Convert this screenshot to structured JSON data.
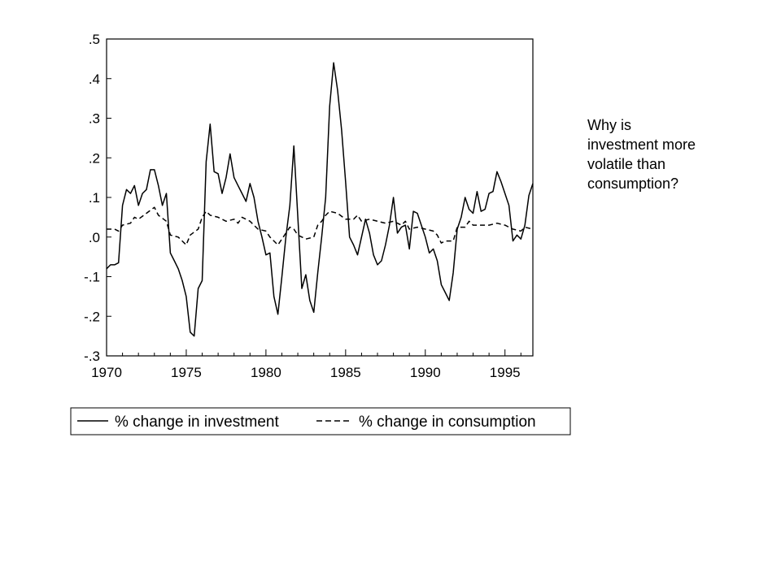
{
  "chart_data": {
    "type": "line",
    "title": "",
    "xlabel": "",
    "ylabel": "",
    "xlim": [
      1970,
      1996.75
    ],
    "ylim": [
      -0.3,
      0.5
    ],
    "x_ticks": [
      1970,
      1975,
      1980,
      1985,
      1990,
      1995
    ],
    "x_tick_labels": [
      "1970",
      "1975",
      "1980",
      "1985",
      "1990",
      "1995"
    ],
    "y_ticks": [
      -0.3,
      -0.2,
      -0.1,
      0.0,
      0.1,
      0.2,
      0.3,
      0.4,
      0.5
    ],
    "y_tick_labels": [
      "-.3",
      "-.2",
      "-.1",
      ".0",
      ".1",
      ".2",
      ".3",
      ".4",
      ".5"
    ],
    "grid": false,
    "legend_position": "bottom",
    "series": [
      {
        "name": "% change in investment",
        "style": "solid",
        "color": "#000000",
        "points": [
          [
            1970.0,
            -0.08
          ],
          [
            1970.25,
            -0.07
          ],
          [
            1970.5,
            -0.07
          ],
          [
            1970.75,
            -0.065
          ],
          [
            1971.0,
            0.08
          ],
          [
            1971.25,
            0.12
          ],
          [
            1971.5,
            0.11
          ],
          [
            1971.75,
            0.13
          ],
          [
            1972.0,
            0.08
          ],
          [
            1972.25,
            0.11
          ],
          [
            1972.5,
            0.12
          ],
          [
            1972.75,
            0.17
          ],
          [
            1973.0,
            0.17
          ],
          [
            1973.25,
            0.13
          ],
          [
            1973.5,
            0.08
          ],
          [
            1973.75,
            0.11
          ],
          [
            1974.0,
            -0.04
          ],
          [
            1974.25,
            -0.06
          ],
          [
            1974.5,
            -0.08
          ],
          [
            1974.75,
            -0.11
          ],
          [
            1975.0,
            -0.15
          ],
          [
            1975.25,
            -0.24
          ],
          [
            1975.5,
            -0.25
          ],
          [
            1975.75,
            -0.13
          ],
          [
            1976.0,
            -0.11
          ],
          [
            1976.25,
            0.19
          ],
          [
            1976.5,
            0.285
          ],
          [
            1976.75,
            0.165
          ],
          [
            1977.0,
            0.16
          ],
          [
            1977.25,
            0.11
          ],
          [
            1977.5,
            0.15
          ],
          [
            1977.75,
            0.21
          ],
          [
            1978.0,
            0.15
          ],
          [
            1978.25,
            0.13
          ],
          [
            1978.5,
            0.11
          ],
          [
            1978.75,
            0.09
          ],
          [
            1979.0,
            0.135
          ],
          [
            1979.25,
            0.1
          ],
          [
            1979.5,
            0.04
          ],
          [
            1979.75,
            0.0
          ],
          [
            1980.0,
            -0.045
          ],
          [
            1980.25,
            -0.04
          ],
          [
            1980.5,
            -0.15
          ],
          [
            1980.75,
            -0.195
          ],
          [
            1981.0,
            -0.1
          ],
          [
            1981.25,
            0.0
          ],
          [
            1981.5,
            0.08
          ],
          [
            1981.75,
            0.23
          ],
          [
            1982.0,
            0.05
          ],
          [
            1982.25,
            -0.13
          ],
          [
            1982.5,
            -0.095
          ],
          [
            1982.75,
            -0.16
          ],
          [
            1983.0,
            -0.19
          ],
          [
            1983.25,
            -0.09
          ],
          [
            1983.5,
            0.0
          ],
          [
            1983.75,
            0.1
          ],
          [
            1984.0,
            0.33
          ],
          [
            1984.25,
            0.44
          ],
          [
            1984.5,
            0.37
          ],
          [
            1984.75,
            0.27
          ],
          [
            1985.0,
            0.14
          ],
          [
            1985.25,
            0.0
          ],
          [
            1985.5,
            -0.02
          ],
          [
            1985.75,
            -0.045
          ],
          [
            1986.0,
            0.0
          ],
          [
            1986.25,
            0.045
          ],
          [
            1986.5,
            0.01
          ],
          [
            1986.75,
            -0.045
          ],
          [
            1987.0,
            -0.07
          ],
          [
            1987.25,
            -0.06
          ],
          [
            1987.5,
            -0.02
          ],
          [
            1987.75,
            0.03
          ],
          [
            1988.0,
            0.1
          ],
          [
            1988.25,
            0.01
          ],
          [
            1988.5,
            0.025
          ],
          [
            1988.75,
            0.03
          ],
          [
            1989.0,
            -0.03
          ],
          [
            1989.25,
            0.065
          ],
          [
            1989.5,
            0.06
          ],
          [
            1989.75,
            0.03
          ],
          [
            1990.0,
            0.0
          ],
          [
            1990.25,
            -0.04
          ],
          [
            1990.5,
            -0.03
          ],
          [
            1990.75,
            -0.06
          ],
          [
            1991.0,
            -0.12
          ],
          [
            1991.25,
            -0.14
          ],
          [
            1991.5,
            -0.16
          ],
          [
            1991.75,
            -0.09
          ],
          [
            1992.0,
            0.02
          ],
          [
            1992.25,
            0.05
          ],
          [
            1992.5,
            0.1
          ],
          [
            1992.75,
            0.07
          ],
          [
            1993.0,
            0.06
          ],
          [
            1993.25,
            0.115
          ],
          [
            1993.5,
            0.065
          ],
          [
            1993.75,
            0.07
          ],
          [
            1994.0,
            0.11
          ],
          [
            1994.25,
            0.115
          ],
          [
            1994.5,
            0.165
          ],
          [
            1994.75,
            0.14
          ],
          [
            1995.0,
            0.11
          ],
          [
            1995.25,
            0.08
          ],
          [
            1995.5,
            -0.01
          ],
          [
            1995.75,
            0.005
          ],
          [
            1996.0,
            -0.005
          ],
          [
            1996.25,
            0.03
          ],
          [
            1996.5,
            0.105
          ],
          [
            1996.75,
            0.135
          ]
        ]
      },
      {
        "name": "% change in consumption",
        "style": "dashed",
        "color": "#000000",
        "points": [
          [
            1970.0,
            0.02
          ],
          [
            1970.5,
            0.02
          ],
          [
            1970.75,
            0.015
          ],
          [
            1971.0,
            0.03
          ],
          [
            1971.5,
            0.035
          ],
          [
            1971.75,
            0.05
          ],
          [
            1972.0,
            0.045
          ],
          [
            1972.5,
            0.06
          ],
          [
            1973.0,
            0.075
          ],
          [
            1973.25,
            0.055
          ],
          [
            1973.75,
            0.04
          ],
          [
            1974.0,
            0.005
          ],
          [
            1974.5,
            0.0
          ],
          [
            1975.0,
            -0.02
          ],
          [
            1975.25,
            0.005
          ],
          [
            1975.75,
            0.02
          ],
          [
            1976.0,
            0.05
          ],
          [
            1976.25,
            0.065
          ],
          [
            1976.5,
            0.055
          ],
          [
            1977.0,
            0.05
          ],
          [
            1977.5,
            0.04
          ],
          [
            1978.0,
            0.045
          ],
          [
            1978.25,
            0.035
          ],
          [
            1978.5,
            0.05
          ],
          [
            1979.0,
            0.04
          ],
          [
            1979.5,
            0.02
          ],
          [
            1980.0,
            0.015
          ],
          [
            1980.25,
            0.0
          ],
          [
            1980.5,
            -0.01
          ],
          [
            1980.75,
            -0.02
          ],
          [
            1981.0,
            -0.005
          ],
          [
            1981.5,
            0.025
          ],
          [
            1981.75,
            0.02
          ],
          [
            1982.0,
            0.005
          ],
          [
            1982.5,
            -0.005
          ],
          [
            1983.0,
            0.0
          ],
          [
            1983.25,
            0.03
          ],
          [
            1983.5,
            0.04
          ],
          [
            1983.75,
            0.055
          ],
          [
            1984.0,
            0.065
          ],
          [
            1984.5,
            0.06
          ],
          [
            1985.0,
            0.045
          ],
          [
            1985.5,
            0.045
          ],
          [
            1985.75,
            0.055
          ],
          [
            1986.0,
            0.04
          ],
          [
            1986.5,
            0.045
          ],
          [
            1987.0,
            0.04
          ],
          [
            1987.5,
            0.035
          ],
          [
            1988.0,
            0.04
          ],
          [
            1988.5,
            0.03
          ],
          [
            1988.75,
            0.04
          ],
          [
            1989.0,
            0.02
          ],
          [
            1989.5,
            0.025
          ],
          [
            1990.0,
            0.02
          ],
          [
            1990.5,
            0.015
          ],
          [
            1990.75,
            0.005
          ],
          [
            1991.0,
            -0.015
          ],
          [
            1991.25,
            -0.01
          ],
          [
            1991.75,
            -0.01
          ],
          [
            1992.0,
            0.025
          ],
          [
            1992.5,
            0.025
          ],
          [
            1992.75,
            0.04
          ],
          [
            1993.0,
            0.03
          ],
          [
            1993.5,
            0.03
          ],
          [
            1994.0,
            0.03
          ],
          [
            1994.5,
            0.035
          ],
          [
            1995.0,
            0.03
          ],
          [
            1995.5,
            0.02
          ],
          [
            1996.0,
            0.015
          ],
          [
            1996.25,
            0.025
          ],
          [
            1996.75,
            0.02
          ]
        ]
      }
    ]
  },
  "annotation": {
    "lines": [
      "Why is",
      "investment more",
      "volatile than",
      "consumption?"
    ]
  }
}
